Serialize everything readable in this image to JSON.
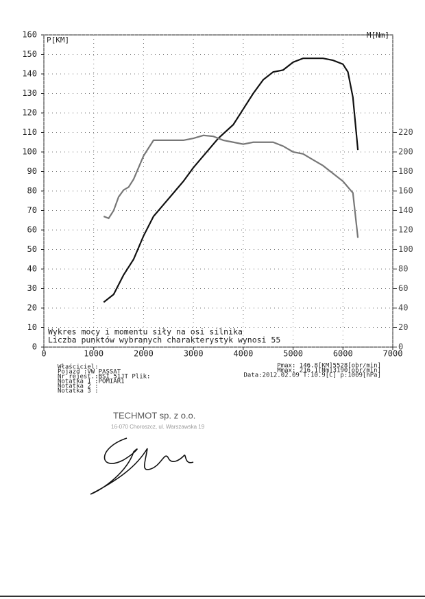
{
  "chart_data": {
    "type": "line",
    "ylabel": "P[KM]",
    "y2label": "M[Nm]",
    "annotations": [
      "Wykres mocy i momentu siły na osi silnika",
      "Liczba punktów wybranych charakterystyk wynosi 55"
    ],
    "xlim": [
      0,
      7000
    ],
    "xticks": [
      0,
      1000,
      2000,
      3000,
      4000,
      5000,
      6000,
      7000
    ],
    "ylim": [
      0,
      160
    ],
    "yticks": [
      0,
      10,
      20,
      30,
      40,
      50,
      60,
      70,
      80,
      90,
      100,
      110,
      120,
      130,
      140,
      150,
      160
    ],
    "y2lim": [
      0,
      320
    ],
    "y2ticks": [
      0,
      20,
      40,
      60,
      80,
      100,
      120,
      140,
      160,
      180,
      200,
      220
    ],
    "grid": true,
    "series": [
      {
        "color": "#111111",
        "x": [
          1200,
          1400,
          1600,
          1800,
          2000,
          2200,
          2400,
          2600,
          2800,
          3000,
          3200,
          3500,
          3800,
          4000,
          4200,
          4400,
          4600,
          4800,
          5000,
          5200,
          5400,
          5600,
          5800,
          6000,
          6100,
          6200,
          6300
        ],
        "values": [
          23,
          27,
          37,
          45,
          57,
          67,
          73,
          79,
          85,
          92,
          98,
          107,
          114,
          122,
          130,
          137,
          141,
          142,
          146,
          148,
          148,
          148,
          147,
          145,
          141,
          128,
          101
        ]
      },
      {
        "color": "#777777",
        "axis": "y2",
        "x": [
          1200,
          1300,
          1400,
          1500,
          1600,
          1700,
          1800,
          1900,
          2000,
          2200,
          2400,
          2600,
          2800,
          3000,
          3200,
          3400,
          3600,
          3800,
          4000,
          4200,
          4400,
          4600,
          4800,
          5000,
          5200,
          5400,
          5600,
          5800,
          6000,
          6200,
          6300
        ],
        "values": [
          134,
          132,
          140,
          154,
          161,
          164,
          172,
          184,
          196,
          212,
          212,
          212,
          212,
          214,
          217,
          216,
          212,
          210,
          208,
          210,
          210,
          210,
          206,
          200,
          198,
          192,
          186,
          178,
          170,
          158,
          112
        ]
      }
    ]
  },
  "info": {
    "left": [
      "Właściciel:",
      "Pojazd :VW PASSAT",
      "Nr rejest.:BSI 51JT  Plik:",
      "Notatka 1 :POMIAR1",
      "Notatka 2 :",
      "Notatka 3 :"
    ],
    "right": [
      "Pmax: 146.8[KM]5528[obr/min]",
      "Mmax: 216.1[Nm]3190[obr/min]",
      "Data:2012.02.09   T:10.9[C]   p:1009[hPa]"
    ]
  },
  "stamp": {
    "company": "TECHMOT sp. z o.o.",
    "address": "16-070 Choroszcz, ul. Warszawska 19"
  }
}
